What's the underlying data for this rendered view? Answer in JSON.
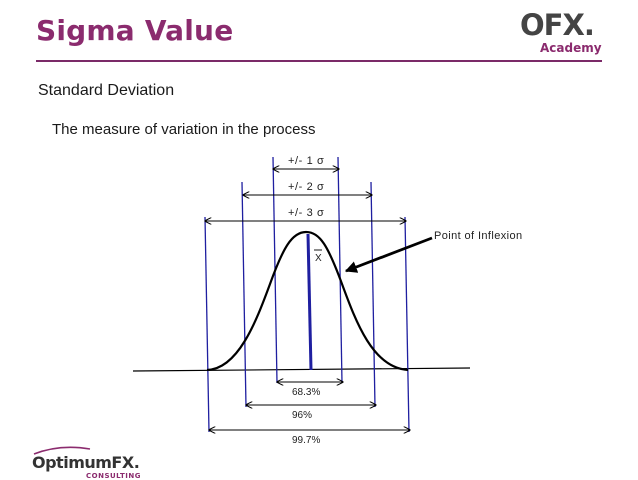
{
  "slide": {
    "title": "Sigma Value",
    "subtitle": "Standard Deviation",
    "description": "The measure of variation in the process"
  },
  "logos": {
    "ofx_top": "OFX",
    "ofx_dot": ".",
    "ofx_bottom": "Academy",
    "optimum_name": "OptimumFX.",
    "optimum_sub": "CONSULTING"
  },
  "diagram": {
    "sigma_ranges": [
      {
        "label": "+/- 1 σ"
      },
      {
        "label": "+/- 2 σ"
      },
      {
        "label": "+/- 3 σ"
      }
    ],
    "coverage": [
      {
        "label": "68.3%"
      },
      {
        "label": "96%"
      },
      {
        "label": "99.7%"
      }
    ],
    "mean_label": "X",
    "inflexion_label": "Point of Inflexion"
  },
  "colors": {
    "title": "#8b2b6e",
    "sigma_lines": "#1f1fa0",
    "curve": "#000000"
  }
}
